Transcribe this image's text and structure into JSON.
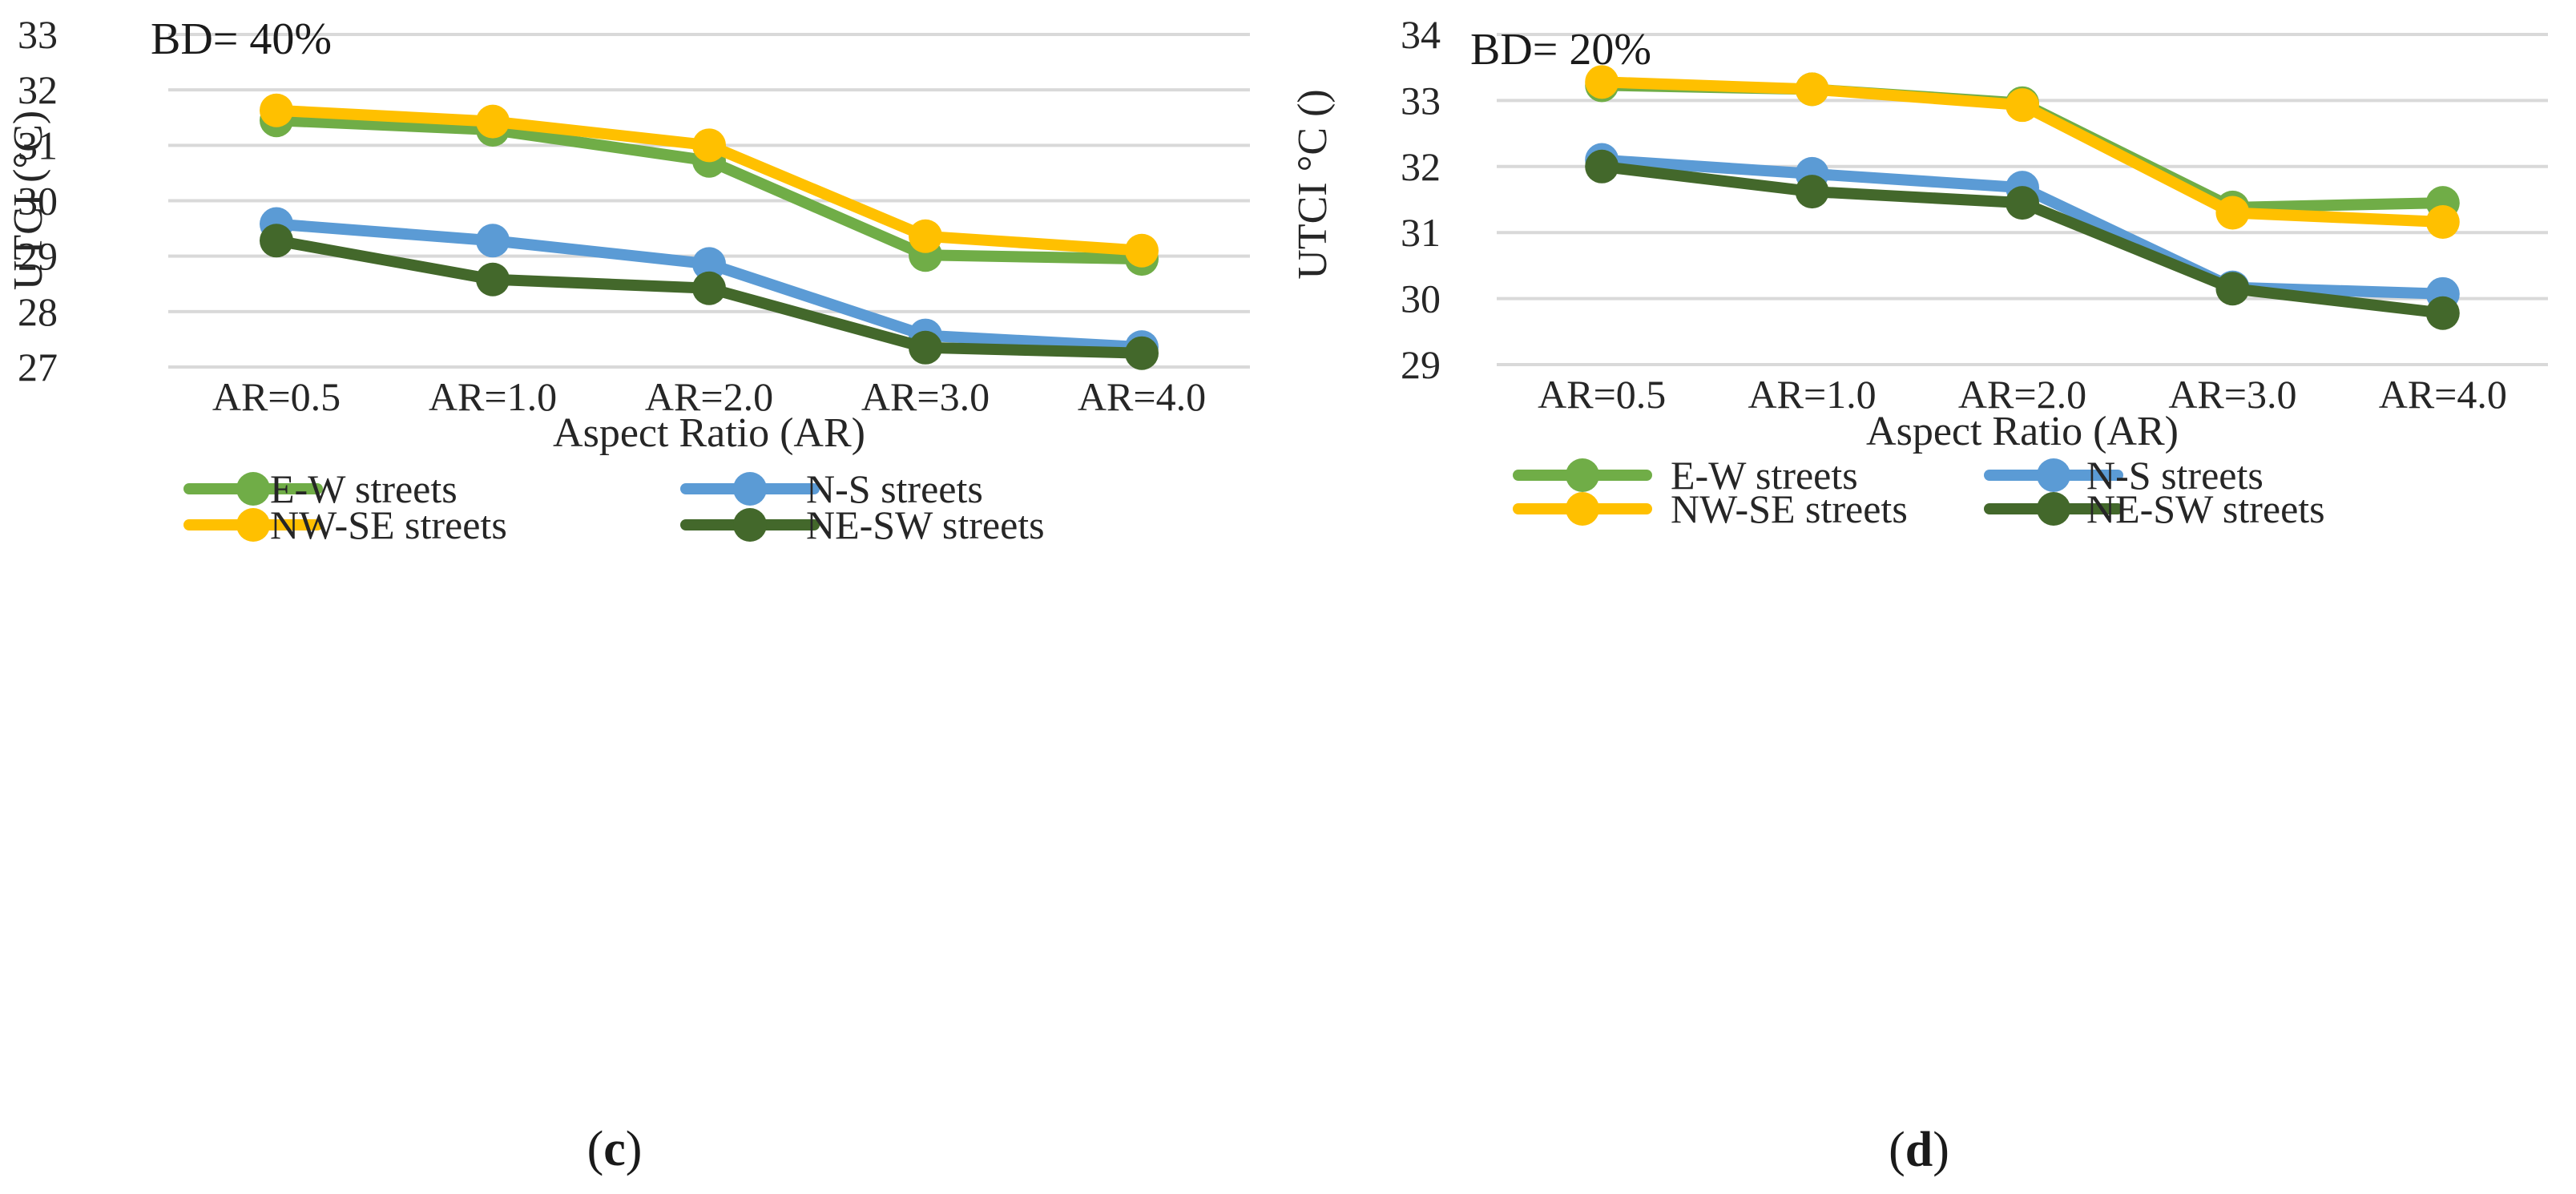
{
  "chart_data": [
    {
      "type": "line",
      "panel_label": {
        "open": "(",
        "letter": "c",
        "close": ")"
      },
      "annotation": "BD= 40%",
      "xlabel": "Aspect Ratio (AR)",
      "ylabel": "UTCI (°C)",
      "ylim": [
        27,
        33
      ],
      "yticks": [
        27,
        28,
        29,
        30,
        31,
        32,
        33
      ],
      "grid": true,
      "legend": "bottom",
      "categories": [
        "AR=0.5",
        "AR=1.0",
        "AR=2.0",
        "AR=3.0",
        "AR=4.0"
      ],
      "series": [
        {
          "name": "E-W streets",
          "color": "#70AD47",
          "values": [
            31.45,
            31.28,
            30.72,
            29.02,
            28.95
          ]
        },
        {
          "name": "N-S streets",
          "color": "#5B9BD5",
          "values": [
            29.58,
            29.28,
            28.86,
            27.57,
            27.36
          ]
        },
        {
          "name": "NW-SE streets",
          "color": "#FFC000",
          "values": [
            31.63,
            31.43,
            31.0,
            29.36,
            29.1
          ]
        },
        {
          "name": "NE-SW streets",
          "color": "#43682B",
          "values": [
            29.28,
            28.58,
            28.42,
            27.35,
            27.25
          ]
        }
      ]
    },
    {
      "type": "line",
      "panel_label": {
        "open": "(",
        "letter": "d",
        "close": ")"
      },
      "annotation": "BD= 20%",
      "xlabel": "Aspect Ratio (AR)",
      "ylabel": "UTCI °C ()",
      "ylim": [
        29,
        34
      ],
      "yticks": [
        29,
        30,
        31,
        32,
        33,
        34
      ],
      "grid": true,
      "legend": "bottom",
      "categories": [
        "AR=0.5",
        "AR=1.0",
        "AR=2.0",
        "AR=3.0",
        "AR=4.0"
      ],
      "series": [
        {
          "name": "E-W streets",
          "color": "#70AD47",
          "values": [
            33.23,
            33.17,
            32.96,
            31.38,
            31.45
          ]
        },
        {
          "name": "N-S streets",
          "color": "#5B9BD5",
          "values": [
            32.1,
            31.89,
            31.68,
            30.17,
            30.07
          ]
        },
        {
          "name": "NW-SE streets",
          "color": "#FFC000",
          "values": [
            33.28,
            33.17,
            32.93,
            31.3,
            31.16
          ]
        },
        {
          "name": "NE-SW streets",
          "color": "#43682B",
          "values": [
            32.0,
            31.62,
            31.45,
            30.15,
            29.78
          ]
        }
      ]
    }
  ]
}
